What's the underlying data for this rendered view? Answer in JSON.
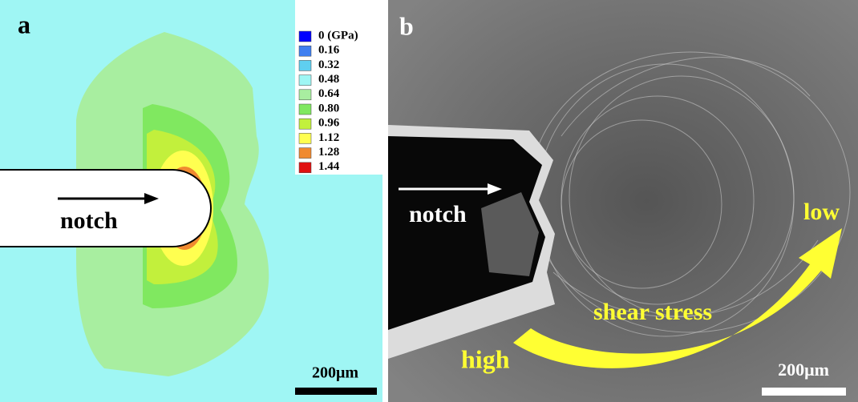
{
  "panel_a": {
    "label": "a",
    "legend": [
      {
        "label": "0 (GPa)",
        "color": "#0000ff"
      },
      {
        "label": "0.16",
        "color": "#3f7ff0"
      },
      {
        "label": "0.32",
        "color": "#5fcff0"
      },
      {
        "label": "0.48",
        "color": "#9ff6f4"
      },
      {
        "label": "0.64",
        "color": "#a8eea0"
      },
      {
        "label": "0.80",
        "color": "#80e860"
      },
      {
        "label": "0.96",
        "color": "#c2f03c"
      },
      {
        "label": "1.12",
        "color": "#ffff50"
      },
      {
        "label": "1.28",
        "color": "#f08a30"
      },
      {
        "label": "1.44",
        "color": "#e01010"
      }
    ],
    "notch_label": "notch",
    "scale_bar": "200μm"
  },
  "panel_b": {
    "label": "b",
    "notch_label": "notch",
    "low_label": "low",
    "shear_label": "shear stress",
    "high_label": "high",
    "scale_bar": "200μm"
  }
}
